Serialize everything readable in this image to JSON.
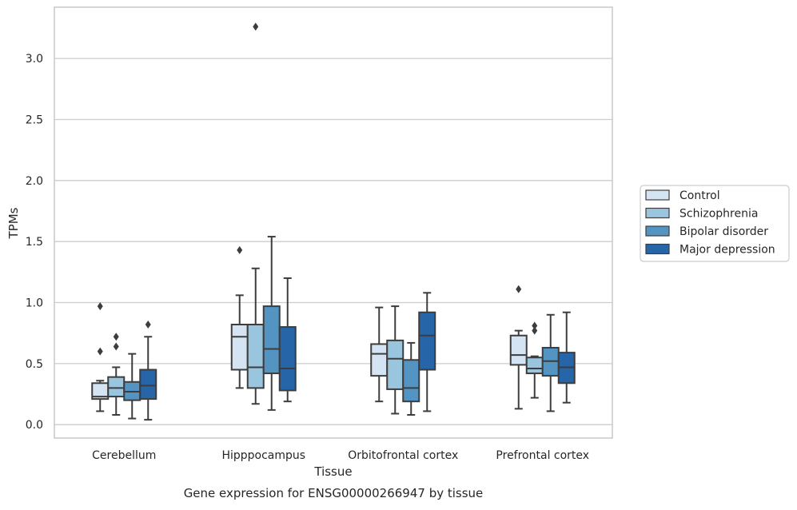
{
  "caption": "Gene expression for ENSG00000266947 by tissue",
  "chart_data": {
    "type": "box",
    "title": "",
    "xlabel": "Tissue",
    "ylabel": "TPMs",
    "ylim": [
      -0.11,
      3.42
    ],
    "yticks": [
      0.0,
      0.5,
      1.0,
      1.5,
      2.0,
      2.5,
      3.0
    ],
    "ytick_labels": [
      "0.0",
      "0.5",
      "1.0",
      "1.5",
      "2.0",
      "2.5",
      "3.0"
    ],
    "grid": "horizontal",
    "legend_position": "right",
    "categories": [
      "Cerebellum",
      "Hipppocampus",
      "Orbitofrontal cortex",
      "Prefrontal cortex"
    ],
    "series": [
      {
        "name": "Control",
        "color": "#d4e4f2",
        "boxes": [
          {
            "whisker_low": 0.11,
            "q1": 0.21,
            "median": 0.23,
            "q3": 0.34,
            "whisker_high": 0.36,
            "outliers": [
              0.97,
              0.6
            ]
          },
          {
            "whisker_low": 0.3,
            "q1": 0.45,
            "median": 0.72,
            "q3": 0.82,
            "whisker_high": 1.06,
            "outliers": [
              1.43
            ]
          },
          {
            "whisker_low": 0.19,
            "q1": 0.4,
            "median": 0.58,
            "q3": 0.66,
            "whisker_high": 0.96,
            "outliers": []
          },
          {
            "whisker_low": 0.13,
            "q1": 0.49,
            "median": 0.57,
            "q3": 0.73,
            "whisker_high": 0.77,
            "outliers": [
              1.11
            ]
          }
        ]
      },
      {
        "name": "Schizophrenia",
        "color": "#9ac5df",
        "boxes": [
          {
            "whisker_low": 0.08,
            "q1": 0.23,
            "median": 0.3,
            "q3": 0.39,
            "whisker_high": 0.47,
            "outliers": [
              0.72,
              0.64
            ]
          },
          {
            "whisker_low": 0.17,
            "q1": 0.3,
            "median": 0.47,
            "q3": 0.82,
            "whisker_high": 1.28,
            "outliers": [
              3.26
            ]
          },
          {
            "whisker_low": 0.09,
            "q1": 0.29,
            "median": 0.54,
            "q3": 0.69,
            "whisker_high": 0.97,
            "outliers": []
          },
          {
            "whisker_low": 0.22,
            "q1": 0.42,
            "median": 0.46,
            "q3": 0.55,
            "whisker_high": 0.56,
            "outliers": [
              0.81,
              0.77
            ]
          }
        ]
      },
      {
        "name": "Bipolar disorder",
        "color": "#5394c3",
        "boxes": [
          {
            "whisker_low": 0.05,
            "q1": 0.2,
            "median": 0.27,
            "q3": 0.35,
            "whisker_high": 0.58,
            "outliers": []
          },
          {
            "whisker_low": 0.12,
            "q1": 0.42,
            "median": 0.62,
            "q3": 0.97,
            "whisker_high": 1.54,
            "outliers": []
          },
          {
            "whisker_low": 0.08,
            "q1": 0.19,
            "median": 0.3,
            "q3": 0.53,
            "whisker_high": 0.67,
            "outliers": []
          },
          {
            "whisker_low": 0.11,
            "q1": 0.4,
            "median": 0.52,
            "q3": 0.63,
            "whisker_high": 0.9,
            "outliers": []
          }
        ]
      },
      {
        "name": "Major depression",
        "color": "#2565a8",
        "boxes": [
          {
            "whisker_low": 0.04,
            "q1": 0.21,
            "median": 0.32,
            "q3": 0.45,
            "whisker_high": 0.72,
            "outliers": [
              0.82
            ]
          },
          {
            "whisker_low": 0.19,
            "q1": 0.28,
            "median": 0.46,
            "q3": 0.8,
            "whisker_high": 1.2,
            "outliers": []
          },
          {
            "whisker_low": 0.11,
            "q1": 0.45,
            "median": 0.73,
            "q3": 0.92,
            "whisker_high": 1.08,
            "outliers": []
          },
          {
            "whisker_low": 0.18,
            "q1": 0.34,
            "median": 0.47,
            "q3": 0.59,
            "whisker_high": 0.92,
            "outliers": []
          }
        ]
      }
    ],
    "colors": {
      "grid": "#cccccc",
      "frame": "#cccccc",
      "line": "#3d3d3d",
      "text": "#262626"
    }
  }
}
